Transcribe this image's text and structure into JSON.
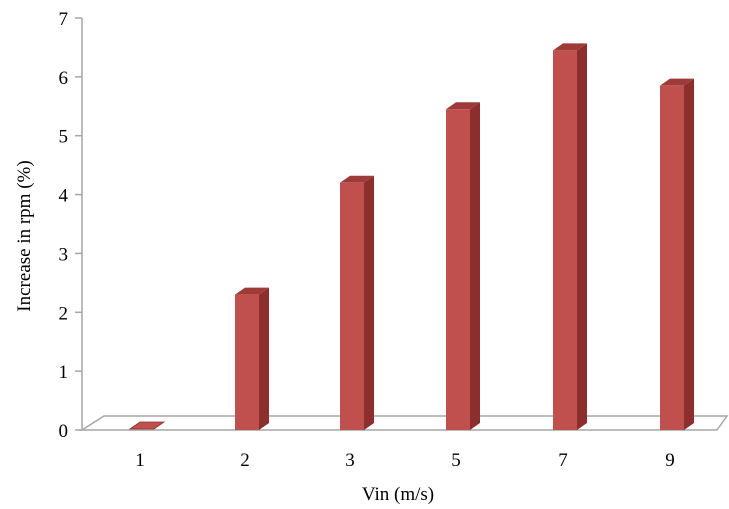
{
  "chart_data": {
    "type": "bar",
    "title": "",
    "xlabel": "Vin (m/s)",
    "ylabel": "Increase in rpm (%)",
    "categories": [
      "1",
      "2",
      "3",
      "5",
      "7",
      "9"
    ],
    "values": [
      0.05,
      2.3,
      4.2,
      5.45,
      6.45,
      5.85
    ],
    "ylim": [
      0,
      7
    ],
    "yticks": [
      "0",
      "1",
      "2",
      "3",
      "4",
      "5",
      "6",
      "7"
    ],
    "grid": false,
    "legend": "none",
    "bar_style": "3d-column",
    "colors": {
      "bar_front": "#c0504d",
      "bar_side": "#8b2e2c",
      "bar_top": "#9e3b38",
      "axis": "#a6a6a6"
    }
  }
}
